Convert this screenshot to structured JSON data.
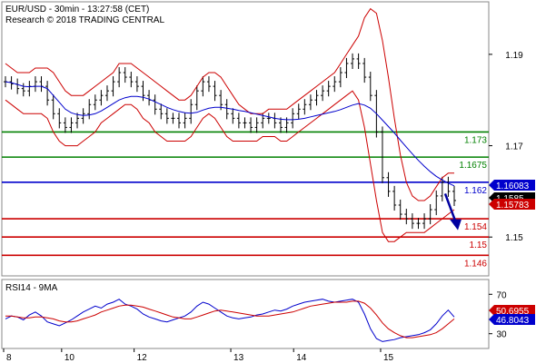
{
  "chart_data": {
    "type": "candlestick",
    "header": {
      "line1": "EUR/USD - 30min - 13:27:58 (CET)",
      "line2": "Research © 2018 TRADING CENTRAL"
    },
    "x_ticks": [
      {
        "label": "8",
        "t": 0.0
      },
      {
        "label": "10",
        "t": 0.12
      },
      {
        "label": "12",
        "t": 0.27
      },
      {
        "label": "13",
        "t": 0.47
      },
      {
        "label": "14",
        "t": 0.6
      },
      {
        "label": "15",
        "t": 0.78
      }
    ],
    "price_panel": {
      "ylim": [
        1.1415,
        1.2015
      ],
      "y_ticks": [
        {
          "label": "1.19",
          "value": 1.19
        },
        {
          "label": "1.17",
          "value": 1.17
        },
        {
          "label": "1.15",
          "value": 1.15
        }
      ],
      "levels": [
        {
          "label": "1.173",
          "value": 1.173,
          "color": "#008000"
        },
        {
          "label": "1.1675",
          "value": 1.1675,
          "color": "#008000"
        },
        {
          "label": "1.162",
          "value": 1.162,
          "color": "#0000cc"
        },
        {
          "label": "1.154",
          "value": 1.154,
          "color": "#cc0000"
        },
        {
          "label": "1.15",
          "value": 1.15,
          "color": "#cc0000"
        },
        {
          "label": "1.146",
          "value": 1.146,
          "color": "#cc0000"
        }
      ],
      "tags": [
        {
          "label": "1.16083",
          "value": 1.16083,
          "color": "#0000cc"
        },
        {
          "label": "1.1585",
          "value": 1.1585,
          "color": "#000000"
        },
        {
          "label": "1.15783",
          "value": 1.15783,
          "color": "#cc0000"
        }
      ],
      "series": [
        {
          "name": "price",
          "color": "#000000",
          "values": [
            1.184,
            1.1835,
            1.1825,
            1.182,
            1.183,
            1.184,
            1.183,
            1.18,
            1.177,
            1.175,
            1.174,
            1.175,
            1.176,
            1.177,
            1.179,
            1.18,
            1.181,
            1.182,
            1.184,
            1.186,
            1.185,
            1.184,
            1.183,
            1.181,
            1.18,
            1.178,
            1.177,
            1.176,
            1.176,
            1.175,
            1.176,
            1.179,
            1.182,
            1.184,
            1.183,
            1.181,
            1.179,
            1.177,
            1.176,
            1.175,
            1.175,
            1.174,
            1.175,
            1.176,
            1.176,
            1.175,
            1.174,
            1.175,
            1.177,
            1.178,
            1.179,
            1.18,
            1.181,
            1.182,
            1.183,
            1.184,
            1.186,
            1.188,
            1.189,
            1.188,
            1.185,
            1.181,
            1.173,
            1.163,
            1.16,
            1.157,
            1.155,
            1.154,
            1.153,
            1.153,
            1.154,
            1.156,
            1.159,
            1.162,
            1.16,
            1.158
          ]
        },
        {
          "name": "bb-upper",
          "color": "#cc0000",
          "values": [
            1.188,
            1.187,
            1.186,
            1.186,
            1.186,
            1.187,
            1.187,
            1.187,
            1.186,
            1.184,
            1.182,
            1.181,
            1.181,
            1.181,
            1.182,
            1.183,
            1.184,
            1.185,
            1.186,
            1.188,
            1.188,
            1.188,
            1.187,
            1.186,
            1.185,
            1.184,
            1.183,
            1.182,
            1.181,
            1.18,
            1.18,
            1.181,
            1.183,
            1.185,
            1.186,
            1.186,
            1.185,
            1.183,
            1.181,
            1.179,
            1.178,
            1.177,
            1.177,
            1.177,
            1.178,
            1.178,
            1.178,
            1.178,
            1.179,
            1.18,
            1.181,
            1.182,
            1.183,
            1.184,
            1.185,
            1.186,
            1.188,
            1.19,
            1.192,
            1.194,
            1.198,
            1.2,
            1.199,
            1.193,
            1.185,
            1.176,
            1.168,
            1.162,
            1.159,
            1.158,
            1.158,
            1.159,
            1.161,
            1.163,
            1.164,
            1.164
          ]
        },
        {
          "name": "bb-lower",
          "color": "#cc0000",
          "values": [
            1.18,
            1.179,
            1.178,
            1.177,
            1.177,
            1.177,
            1.177,
            1.176,
            1.173,
            1.171,
            1.17,
            1.17,
            1.17,
            1.171,
            1.172,
            1.173,
            1.175,
            1.176,
            1.177,
            1.178,
            1.179,
            1.179,
            1.178,
            1.176,
            1.175,
            1.173,
            1.172,
            1.171,
            1.171,
            1.171,
            1.171,
            1.172,
            1.174,
            1.176,
            1.177,
            1.176,
            1.174,
            1.172,
            1.171,
            1.171,
            1.171,
            1.171,
            1.171,
            1.172,
            1.172,
            1.172,
            1.171,
            1.171,
            1.172,
            1.173,
            1.174,
            1.175,
            1.176,
            1.177,
            1.178,
            1.179,
            1.18,
            1.181,
            1.182,
            1.18,
            1.174,
            1.166,
            1.158,
            1.151,
            1.149,
            1.149,
            1.15,
            1.151,
            1.151,
            1.151,
            1.151,
            1.152,
            1.153,
            1.154,
            1.155,
            1.156
          ]
        },
        {
          "name": "ma",
          "color": "#0000cc",
          "values": [
            1.184,
            1.1838,
            1.1834,
            1.183,
            1.1829,
            1.183,
            1.183,
            1.1825,
            1.181,
            1.1795,
            1.178,
            1.1772,
            1.1768,
            1.1766,
            1.1767,
            1.177,
            1.1776,
            1.1784,
            1.1792,
            1.18,
            1.1805,
            1.1808,
            1.1808,
            1.1806,
            1.1802,
            1.1796,
            1.179,
            1.1784,
            1.1779,
            1.1775,
            1.1772,
            1.1771,
            1.1773,
            1.1778,
            1.1782,
            1.1784,
            1.1784,
            1.1782,
            1.178,
            1.1777,
            1.1775,
            1.1772,
            1.1769,
            1.1766,
            1.1763,
            1.176,
            1.1758,
            1.1757,
            1.1757,
            1.1758,
            1.176,
            1.1763,
            1.1766,
            1.1769,
            1.1772,
            1.1775,
            1.1779,
            1.1784,
            1.1789,
            1.1792,
            1.1789,
            1.1782,
            1.177,
            1.1756,
            1.1742,
            1.1728,
            1.1712,
            1.1697,
            1.1682,
            1.1668,
            1.1655,
            1.1643,
            1.1633,
            1.1625,
            1.1618,
            1.1612
          ]
        }
      ],
      "arrow": {
        "from": 1.1595,
        "to": 1.1515,
        "color": "#0000a0"
      }
    },
    "rsi_panel": {
      "title": "RSI14 - 9MA",
      "ylim": [
        15,
        85
      ],
      "y_ticks": [
        {
          "label": "70",
          "value": 70
        },
        {
          "label": "30",
          "value": 30
        }
      ],
      "tags": [
        {
          "label": "50.6955",
          "value": 50.6955,
          "color": "#cc0000"
        },
        {
          "label": "46.8043",
          "value": 46.8043,
          "color": "#0000cc"
        }
      ],
      "series": [
        {
          "name": "rsi",
          "color": "#0000cc",
          "values": [
            45,
            48,
            47,
            44,
            49,
            52,
            48,
            42,
            40,
            38,
            41,
            44,
            48,
            52,
            55,
            58,
            56,
            60,
            62,
            65,
            60,
            58,
            55,
            50,
            47,
            45,
            43,
            42,
            44,
            46,
            48,
            52,
            58,
            62,
            60,
            56,
            52,
            48,
            46,
            45,
            46,
            47,
            49,
            50,
            52,
            54,
            53,
            55,
            58,
            60,
            62,
            63,
            64,
            65,
            63,
            62,
            63,
            64,
            65,
            62,
            50,
            35,
            25,
            22,
            23,
            24,
            26,
            27,
            28,
            29,
            31,
            34,
            40,
            48,
            54,
            47
          ]
        },
        {
          "name": "rsi-ma",
          "color": "#cc0000",
          "values": [
            48,
            48,
            47,
            46,
            46,
            47,
            47,
            46,
            45,
            43,
            42,
            42,
            43,
            45,
            47,
            49,
            52,
            54,
            56,
            58,
            59,
            59,
            58,
            57,
            55,
            53,
            51,
            49,
            47,
            46,
            45,
            45,
            47,
            49,
            51,
            53,
            54,
            53,
            52,
            51,
            50,
            49,
            48,
            48,
            48,
            49,
            50,
            51,
            52,
            54,
            56,
            58,
            59,
            60,
            61,
            62,
            62,
            62,
            63,
            63,
            61,
            56,
            49,
            41,
            35,
            31,
            28,
            26,
            26,
            27,
            28,
            29,
            31,
            35,
            40,
            45
          ]
        }
      ]
    }
  }
}
